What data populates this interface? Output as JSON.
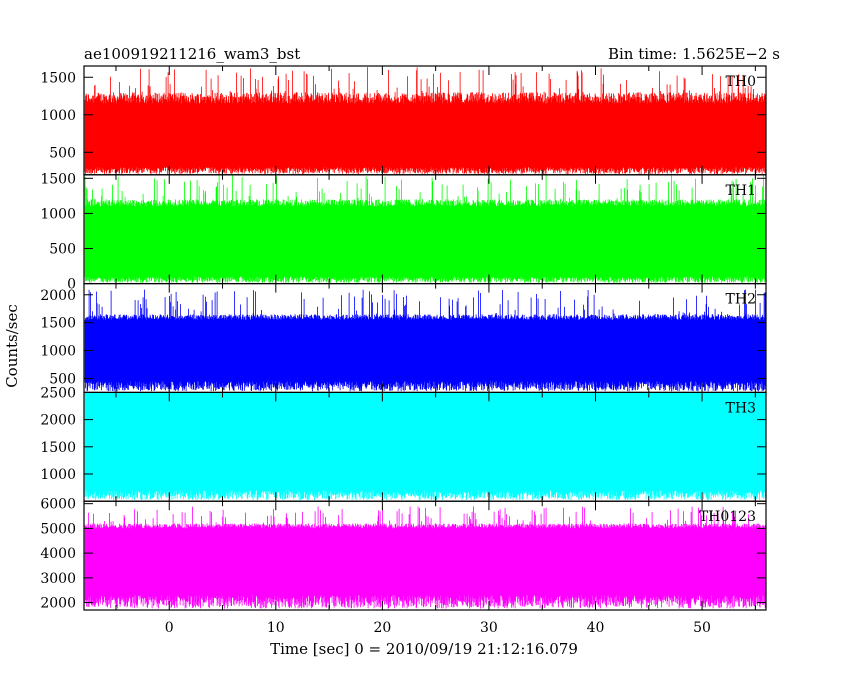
{
  "header": {
    "title": "ae100919211216_wam3_bst",
    "bin_time": "Bin time: 1.5625E−2 s"
  },
  "chart_data": {
    "type": "line",
    "ylabel": "Counts/sec",
    "xlabel": "Time [sec] 0 = 2010/09/19 21:12:16.079",
    "xlim": [
      -8,
      56
    ],
    "x_range_data": [
      -7.9,
      56.1
    ],
    "x_ticks": [
      0,
      10,
      20,
      30,
      40,
      50
    ],
    "grid": false,
    "panels": [
      {
        "name": "TH0",
        "color": "#ff0000",
        "ylim": [
          200,
          1650
        ],
        "yticks": [
          500,
          1000,
          1500
        ],
        "level": [
          300,
          1150
        ],
        "peak": [
          1300,
          1640
        ]
      },
      {
        "name": "TH1",
        "color": "#00ff00",
        "ylim": [
          0,
          1550
        ],
        "yticks": [
          0,
          500,
          1000,
          1500
        ],
        "level": [
          100,
          1100
        ],
        "peak": [
          1200,
          1550
        ]
      },
      {
        "name": "TH2",
        "color": "#0000ff",
        "ylim": [
          250,
          2200
        ],
        "yticks": [
          500,
          1000,
          1500,
          2000
        ],
        "level": [
          450,
          1550
        ],
        "peak": [
          1650,
          2100
        ]
      },
      {
        "name": "TH3",
        "color": "#00ffff",
        "ylim": [
          500,
          2500
        ],
        "yticks": [
          1000,
          1500,
          2000,
          2500
        ],
        "level": [
          700,
          2500
        ],
        "peak": [
          2500,
          2500
        ]
      },
      {
        "name": "TH0123",
        "color": "#ff00ff",
        "ylim": [
          1700,
          6100
        ],
        "yticks": [
          2000,
          3000,
          4000,
          5000,
          6000
        ],
        "level": [
          2300,
          5000
        ],
        "peak": [
          5200,
          5900
        ]
      }
    ]
  }
}
